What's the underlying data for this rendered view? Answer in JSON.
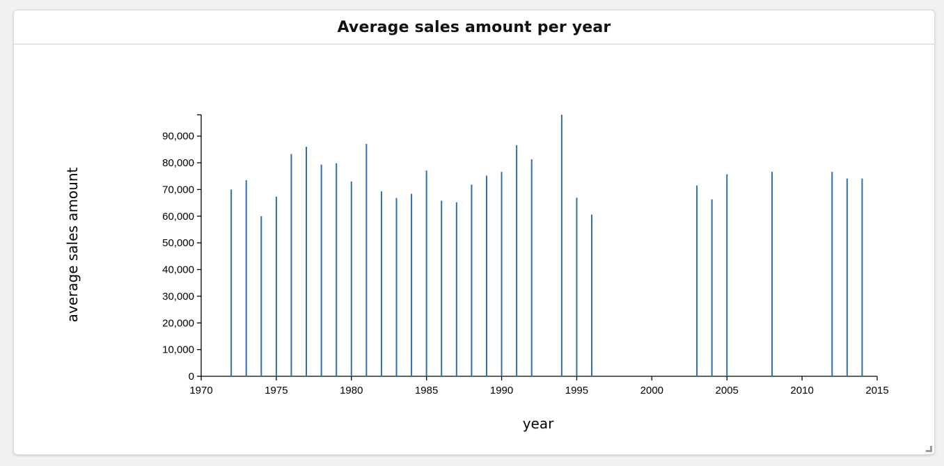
{
  "panel": {
    "title": "Average sales amount per year"
  },
  "colors": {
    "bar": "#2f6fad",
    "axis": "#000000"
  },
  "chart_data": {
    "type": "bar",
    "title": "Average sales amount per year",
    "xlabel": "year",
    "ylabel": "average sales amount",
    "xlim": [
      1970,
      2015
    ],
    "ylim": [
      0,
      98000
    ],
    "x_ticks": [
      1970,
      1975,
      1980,
      1985,
      1990,
      1995,
      2000,
      2005,
      2010,
      2015
    ],
    "x_tick_labels": [
      "1970",
      "1975",
      "1980",
      "1985",
      "1990",
      "1995",
      "2000",
      "2005",
      "2010",
      "2015"
    ],
    "y_ticks": [
      0,
      10000,
      20000,
      30000,
      40000,
      50000,
      60000,
      70000,
      80000,
      90000
    ],
    "y_tick_labels": [
      "0",
      "10,000",
      "20,000",
      "30,000",
      "40,000",
      "50,000",
      "60,000",
      "70,000",
      "80,000",
      "90,000"
    ],
    "grid": false,
    "x": [
      1972,
      1973,
      1974,
      1975,
      1976,
      1977,
      1978,
      1979,
      1980,
      1981,
      1982,
      1983,
      1984,
      1985,
      1986,
      1987,
      1988,
      1989,
      1990,
      1991,
      1992,
      1994,
      1995,
      1996,
      2003,
      2004,
      2005,
      2008,
      2012,
      2013,
      2014
    ],
    "values": [
      70000,
      73500,
      60000,
      67300,
      83300,
      86000,
      79300,
      79800,
      73000,
      87100,
      69300,
      66800,
      68400,
      77100,
      65800,
      65200,
      71800,
      75200,
      76600,
      86600,
      81300,
      98000,
      66900,
      60600,
      71500,
      66300,
      75700,
      76600,
      76600,
      74100,
      74100
    ]
  }
}
